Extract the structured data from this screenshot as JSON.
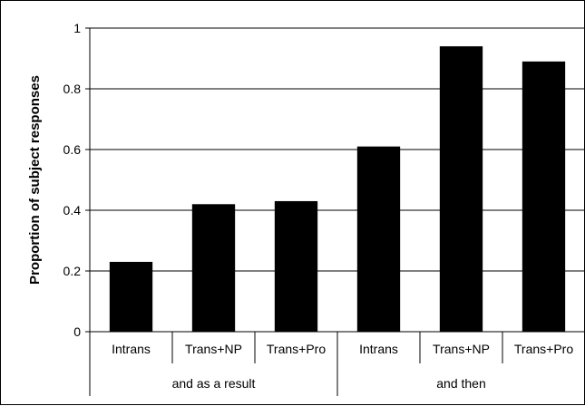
{
  "chart_data": {
    "type": "bar",
    "title": "",
    "xlabel": "",
    "ylabel": "Proportion of subject responses",
    "ylim": [
      0,
      1
    ],
    "yticks": [
      "0",
      "0.2",
      "0.4",
      "0.6",
      "0.8",
      "1"
    ],
    "grid": true,
    "legend": "none",
    "bar_color": "#000000",
    "groups": [
      {
        "label": "and as a result",
        "categories": [
          "Intrans",
          "Trans+NP",
          "Trans+Pro"
        ],
        "values": [
          0.23,
          0.42,
          0.43
        ]
      },
      {
        "label": "and then",
        "categories": [
          "Intrans",
          "Trans+NP",
          "Trans+Pro"
        ],
        "values": [
          0.61,
          0.94,
          0.89
        ]
      }
    ]
  }
}
